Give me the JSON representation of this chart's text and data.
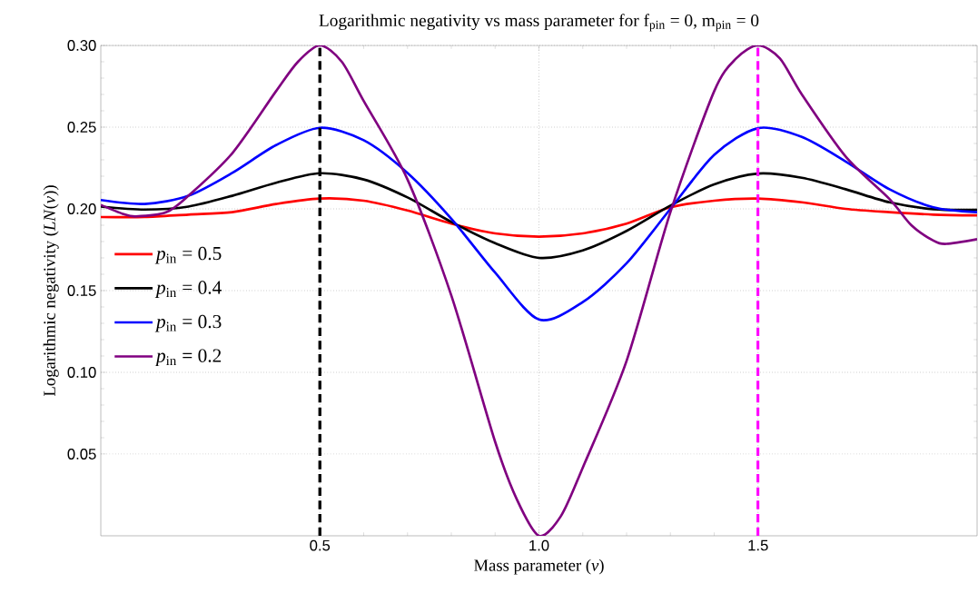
{
  "chart_data": {
    "type": "line",
    "title": "Logarithmic negativity vs mass parameter for f$_{pin}$ = 0, m$_{pin}$ = 0",
    "xlabel": "Mass parameter  (*ν*)",
    "ylabel": "Logarithmic negativity  (*LN*(*ν*))",
    "x": [
      0,
      0.1,
      0.2,
      0.3,
      0.4,
      0.5,
      0.6,
      0.7,
      0.8,
      0.9,
      1.0,
      1.1,
      1.2,
      1.3,
      1.4,
      1.5,
      1.6,
      1.7,
      1.8,
      1.9,
      2.0
    ],
    "series": [
      {
        "name": "*p*$_{in}$ = 0.5",
        "color": "#ff0000",
        "values": [
          0.195,
          0.195,
          0.1965,
          0.198,
          0.203,
          0.2063,
          0.205,
          0.199,
          0.191,
          0.185,
          0.183,
          0.185,
          0.191,
          0.201,
          0.205,
          0.2063,
          0.204,
          0.2,
          0.198,
          0.1965,
          0.196
        ]
      },
      {
        "name": "*p*$_{in}$ = 0.4",
        "color": "#000000",
        "values": [
          0.2014,
          0.1996,
          0.2014,
          0.208,
          0.216,
          0.2218,
          0.218,
          0.207,
          0.192,
          0.179,
          0.17,
          0.1746,
          0.1865,
          0.202,
          0.215,
          0.2216,
          0.219,
          0.212,
          0.204,
          0.1998,
          0.1994
        ]
      },
      {
        "name": "*p*$_{in}$ = 0.3",
        "color": "#0000ff",
        "values": [
          0.2054,
          0.203,
          0.208,
          0.222,
          0.239,
          0.2496,
          0.242,
          0.222,
          0.194,
          0.161,
          0.1323,
          0.143,
          0.1667,
          0.2,
          0.233,
          0.2494,
          0.244,
          0.229,
          0.212,
          0.201,
          0.198
        ]
      },
      {
        "name": "*p*$_{in}$ = 0.2",
        "color": "#800080",
        "x": [
          0,
          0.05,
          0.08,
          0.15,
          0.2,
          0.3,
          0.4,
          0.45,
          0.5,
          0.55,
          0.6,
          0.7,
          0.8,
          0.9,
          0.95,
          1.0,
          1.05,
          1.1,
          1.2,
          1.3,
          1.4,
          1.45,
          1.5,
          1.55,
          1.6,
          1.7,
          1.8,
          1.85,
          1.9,
          1.93,
          2.0
        ],
        "values": [
          0.2024,
          0.197,
          0.1954,
          0.198,
          0.208,
          0.234,
          0.272,
          0.29,
          0.3,
          0.29,
          0.266,
          0.218,
          0.147,
          0.0575,
          0.022,
          0.0,
          0.012,
          0.0417,
          0.107,
          0.198,
          0.272,
          0.292,
          0.3,
          0.292,
          0.27,
          0.232,
          0.206,
          0.19,
          0.1806,
          0.1786,
          0.1815
        ]
      }
    ],
    "xlim": [
      0,
      2
    ],
    "ylim": [
      0,
      0.3
    ],
    "xticks": [
      0.5,
      {
        "value": 1.0,
        "label": "1.0"
      },
      1.5
    ],
    "yticks": [
      0.05,
      {
        "value": 0.1,
        "label": "0.10"
      },
      0.15,
      {
        "value": 0.2,
        "label": "0.20"
      },
      0.25,
      {
        "value": 0.3,
        "label": "0.30"
      }
    ],
    "ref_lines": [
      {
        "axis": "x",
        "value": 0.5,
        "color": "#000000",
        "line_style": "dashed"
      },
      {
        "axis": "x",
        "value": 1.5,
        "color": "#ff00ff",
        "line_style": "dashed"
      }
    ],
    "grid": true,
    "legend": "left",
    "marker": "none",
    "line_style": "solid"
  }
}
